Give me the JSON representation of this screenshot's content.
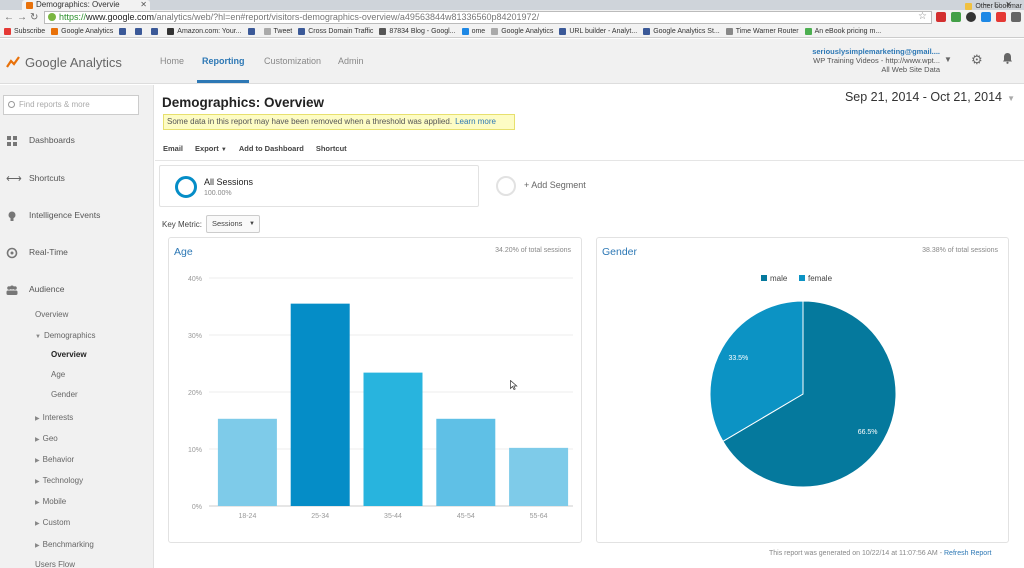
{
  "browser": {
    "tab_title": "Demographics: Overvie",
    "url_scheme": "https://",
    "url_host": "www.google.com",
    "url_path": "/analytics/web/?hl=en#report/visitors-demographics-overview/a49563844w81336560p84201972/",
    "bookmarks": [
      {
        "label": "Subscribe",
        "color": "#e53935"
      },
      {
        "label": "Google Analytics",
        "color": "#e8710a"
      },
      {
        "label": "",
        "color": "#3b5998"
      },
      {
        "label": "",
        "color": "#3b5998"
      },
      {
        "label": "",
        "color": "#3b5998"
      },
      {
        "label": "Amazon.com: Your...",
        "color": "#333333"
      },
      {
        "label": "",
        "color": "#3b5998"
      },
      {
        "label": "Tweet",
        "color": "#aaaaaa"
      },
      {
        "label": "Cross Domain Traffic",
        "color": "#3b5998"
      },
      {
        "label": "87834 Blog - Googl...",
        "color": "#555555"
      },
      {
        "label": "ome",
        "color": "#1e88e5"
      },
      {
        "label": "Google Analytics",
        "color": "#aaaaaa"
      },
      {
        "label": "URL builder - Analyt...",
        "color": "#3b5998"
      },
      {
        "label": "Google Analytics St...",
        "color": "#3b5998"
      },
      {
        "label": "Time Warner Router",
        "color": "#888888"
      },
      {
        "label": "An eBook pricing m...",
        "color": "#4caf50"
      }
    ],
    "other_bookmarks": "Other bookmar"
  },
  "header": {
    "product": "Google Analytics",
    "nav": [
      "Home",
      "Reporting",
      "Customization",
      "Admin"
    ],
    "active_nav": "Reporting",
    "account_email": "seriouslysimplemarketing@gmail....",
    "account_property": "WP Training Videos - http://www.wpt...",
    "account_view": "All Web Site Data"
  },
  "sidebar": {
    "search_placeholder": "Find reports & more",
    "sections": [
      "Dashboards",
      "Shortcuts",
      "Intelligence Events",
      "Real-Time",
      "Audience"
    ],
    "audience_items": {
      "overview": "Overview",
      "demographics": "Demographics",
      "demo_overview": "Overview",
      "demo_age": "Age",
      "demo_gender": "Gender",
      "interests": "Interests",
      "geo": "Geo",
      "behavior": "Behavior",
      "technology": "Technology",
      "mobile": "Mobile",
      "custom": "Custom",
      "benchmarking": "Benchmarking",
      "users_flow": "Users Flow"
    }
  },
  "main": {
    "title": "Demographics: Overview",
    "date_range": "Sep 21, 2014 - Oct 21, 2014",
    "notice": "Some data in this report may have been removed when a threshold was applied.",
    "notice_link": "Learn more",
    "toolbar": {
      "email": "Email",
      "export": "Export",
      "add_to_dashboard": "Add to Dashboard",
      "shortcut": "Shortcut"
    },
    "segment": {
      "name": "All Sessions",
      "pct": "100.00%"
    },
    "add_segment": "+ Add Segment",
    "key_metric_label": "Key Metric:",
    "key_metric_value": "Sessions",
    "footer": "This report was generated on 10/22/14 at 11:07:56 AM -",
    "footer_link": "Refresh Report"
  },
  "chart_data": [
    {
      "type": "bar",
      "title": "Age",
      "note": "34.20% of total sessions",
      "categories": [
        "18-24",
        "25-34",
        "35-44",
        "45-54",
        "55-64"
      ],
      "values": [
        15.3,
        35.5,
        23.4,
        15.3,
        10.2
      ],
      "y_unit": "%",
      "ylim": [
        0,
        40
      ],
      "yticks": [
        "0%",
        "10%",
        "20%",
        "30%",
        "40%"
      ],
      "colors": [
        "#7ecbe9",
        "#058dc7",
        "#28b4de",
        "#5fc0e6",
        "#7ecbe9"
      ],
      "grid": true
    },
    {
      "type": "pie",
      "title": "Gender",
      "note": "38.38% of total sessions",
      "legend_placement": "top",
      "slices": [
        {
          "label": "male",
          "value": 66.5,
          "display": "66.5%",
          "color": "#05799d"
        },
        {
          "label": "female",
          "value": 33.5,
          "display": "33.5%",
          "color": "#0c93c4"
        }
      ]
    }
  ],
  "colors": {
    "accent": "#2d78b5",
    "notice_bg": "#fdfcc4"
  }
}
